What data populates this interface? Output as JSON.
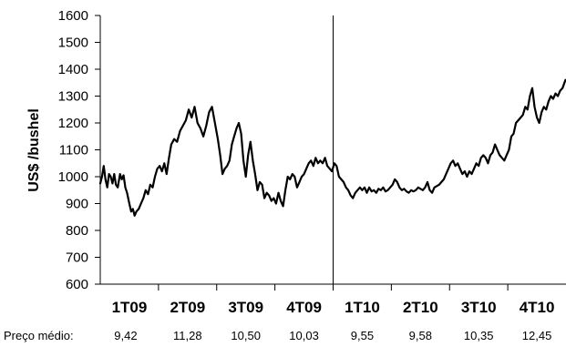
{
  "chart_data": {
    "type": "line",
    "ylabel": "US$ /bushel",
    "ylim": [
      600,
      1600
    ],
    "yticks": [
      "600",
      "700",
      "800",
      "900",
      "1000",
      "1100",
      "1200",
      "1300",
      "1400",
      "1500",
      "1600"
    ],
    "grid": false,
    "quarters": [
      "1T09",
      "2T09",
      "3T09",
      "4T09",
      "1T10",
      "2T10",
      "3T10",
      "4T10"
    ],
    "average_label": "Preço médio:",
    "averages": [
      "9,42",
      "11,28",
      "10,50",
      "10,03",
      "9,55",
      "9,58",
      "10,35",
      "12,45"
    ],
    "series": [
      {
        "x": [
          0,
          0.03,
          0.06,
          0.09,
          0.12,
          0.15,
          0.18,
          0.21,
          0.24,
          0.27,
          0.3,
          0.34,
          0.37,
          0.4,
          0.43,
          0.46,
          0.5,
          0.53,
          0.56,
          0.59,
          0.62,
          0.66,
          0.7,
          0.74,
          0.78,
          0.82,
          0.86,
          0.9,
          0.94,
          0.98,
          1.02,
          1.06,
          1.1,
          1.14,
          1.18,
          1.22,
          1.27,
          1.32,
          1.37,
          1.42,
          1.47,
          1.52,
          1.57,
          1.62,
          1.67,
          1.72,
          1.77,
          1.82,
          1.87,
          1.92,
          1.97,
          2.02,
          2.06,
          2.1,
          2.14,
          2.18,
          2.22,
          2.26,
          2.3,
          2.34,
          2.38,
          2.42,
          2.46,
          2.5,
          2.54,
          2.58,
          2.62,
          2.66,
          2.7,
          2.74,
          2.78,
          2.82,
          2.86,
          2.9,
          2.94,
          2.98,
          3.02,
          3.06,
          3.1,
          3.14,
          3.18,
          3.22,
          3.26,
          3.3,
          3.34,
          3.38,
          3.42,
          3.46,
          3.5,
          3.54,
          3.58,
          3.62,
          3.66,
          3.7,
          3.74,
          3.78,
          3.82,
          3.86,
          3.9,
          3.94,
          3.98,
          4.02,
          4.06,
          4.1,
          4.14,
          4.18,
          4.22,
          4.26,
          4.3,
          4.34,
          4.38,
          4.42,
          4.46,
          4.5,
          4.54,
          4.58,
          4.62,
          4.66,
          4.7,
          4.74,
          4.78,
          4.82,
          4.86,
          4.9,
          4.94,
          4.98,
          5.02,
          5.06,
          5.1,
          5.14,
          5.18,
          5.22,
          5.26,
          5.3,
          5.34,
          5.38,
          5.42,
          5.46,
          5.5,
          5.54,
          5.58,
          5.62,
          5.66,
          5.7,
          5.74,
          5.78,
          5.82,
          5.86,
          5.9,
          5.94,
          5.98,
          6.02,
          6.06,
          6.1,
          6.14,
          6.18,
          6.22,
          6.26,
          6.3,
          6.34,
          6.38,
          6.42,
          6.46,
          6.5,
          6.54,
          6.58,
          6.62,
          6.66,
          6.7,
          6.74,
          6.78,
          6.82,
          6.86,
          6.9,
          6.94,
          6.98,
          7.02,
          7.06,
          7.1,
          7.14,
          7.18,
          7.22,
          7.26,
          7.3,
          7.34,
          7.38,
          7.42,
          7.46,
          7.5,
          7.54,
          7.58,
          7.62,
          7.66,
          7.7,
          7.74,
          7.78,
          7.82,
          7.86,
          7.9,
          7.94,
          7.99
        ],
        "values": [
          975,
          1000,
          1040,
          990,
          960,
          1010,
          1000,
          975,
          1010,
          970,
          960,
          1010,
          990,
          1005,
          960,
          940,
          900,
          870,
          880,
          855,
          870,
          880,
          900,
          920,
          950,
          935,
          970,
          960,
          1000,
          1030,
          1040,
          1020,
          1050,
          1010,
          1070,
          1120,
          1140,
          1130,
          1170,
          1190,
          1210,
          1250,
          1220,
          1260,
          1200,
          1180,
          1150,
          1190,
          1240,
          1260,
          1200,
          1140,
          1080,
          1010,
          1030,
          1040,
          1060,
          1120,
          1150,
          1180,
          1200,
          1160,
          1060,
          1000,
          1080,
          1130,
          1060,
          1010,
          950,
          980,
          970,
          920,
          940,
          930,
          910,
          920,
          900,
          940,
          910,
          890,
          950,
          1000,
          990,
          1010,
          1000,
          960,
          980,
          1000,
          1010,
          1030,
          1050,
          1060,
          1040,
          1070,
          1050,
          1060,
          1050,
          1070,
          1040,
          1030,
          1020,
          1050,
          1040,
          1000,
          990,
          980,
          960,
          950,
          930,
          920,
          940,
          950,
          960,
          950,
          960,
          940,
          960,
          945,
          950,
          940,
          955,
          950,
          960,
          945,
          950,
          960,
          970,
          990,
          980,
          960,
          950,
          955,
          945,
          940,
          950,
          945,
          950,
          960,
          955,
          950,
          960,
          980,
          950,
          940,
          960,
          965,
          970,
          980,
          990,
          1010,
          1030,
          1050,
          1060,
          1040,
          1050,
          1030,
          1010,
          1020,
          1000,
          1020,
          1010,
          1030,
          1050,
          1040,
          1070,
          1080,
          1070,
          1050,
          1080,
          1090,
          1120,
          1100,
          1080,
          1070,
          1060,
          1080,
          1100,
          1150,
          1160,
          1200,
          1210,
          1220,
          1230,
          1260,
          1250,
          1300,
          1330,
          1260,
          1220,
          1200,
          1240,
          1260,
          1250,
          1280,
          1300,
          1290,
          1310,
          1300,
          1320,
          1330,
          1360
        ]
      }
    ],
    "colors": {
      "line": "#000000",
      "axis": "#000000",
      "divider": "#000000"
    }
  }
}
